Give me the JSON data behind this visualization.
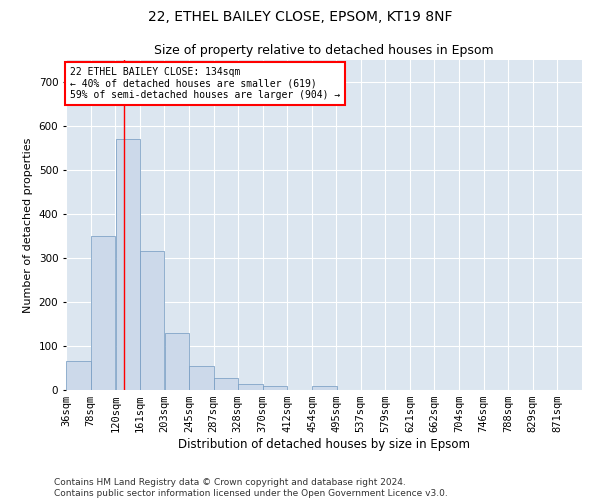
{
  "title1": "22, ETHEL BAILEY CLOSE, EPSOM, KT19 8NF",
  "title2": "Size of property relative to detached houses in Epsom",
  "xlabel": "Distribution of detached houses by size in Epsom",
  "ylabel": "Number of detached properties",
  "bar_color": "#ccd9ea",
  "bar_edge_color": "#7098c0",
  "bg_color": "#dce6f0",
  "annotation_text": "22 ETHEL BAILEY CLOSE: 134sqm\n← 40% of detached houses are smaller (619)\n59% of semi-detached houses are larger (904) →",
  "vline_x": 134,
  "categories": [
    "36sqm",
    "78sqm",
    "120sqm",
    "161sqm",
    "203sqm",
    "245sqm",
    "287sqm",
    "328sqm",
    "370sqm",
    "412sqm",
    "454sqm",
    "495sqm",
    "537sqm",
    "579sqm",
    "621sqm",
    "662sqm",
    "704sqm",
    "746sqm",
    "788sqm",
    "829sqm",
    "871sqm"
  ],
  "bin_starts": [
    36,
    78,
    120,
    161,
    203,
    245,
    287,
    328,
    370,
    412,
    454,
    495,
    537,
    579,
    621,
    662,
    704,
    746,
    788,
    829,
    871
  ],
  "bin_width": 42,
  "values": [
    65,
    350,
    570,
    315,
    130,
    55,
    27,
    14,
    8,
    0,
    9,
    0,
    0,
    0,
    0,
    0,
    0,
    0,
    0,
    0,
    0
  ],
  "ylim": [
    0,
    750
  ],
  "yticks": [
    0,
    100,
    200,
    300,
    400,
    500,
    600,
    700
  ],
  "footer": "Contains HM Land Registry data © Crown copyright and database right 2024.\nContains public sector information licensed under the Open Government Licence v3.0.",
  "title1_fontsize": 10,
  "title2_fontsize": 9,
  "xlabel_fontsize": 8.5,
  "ylabel_fontsize": 8,
  "tick_fontsize": 7.5,
  "footer_fontsize": 6.5
}
